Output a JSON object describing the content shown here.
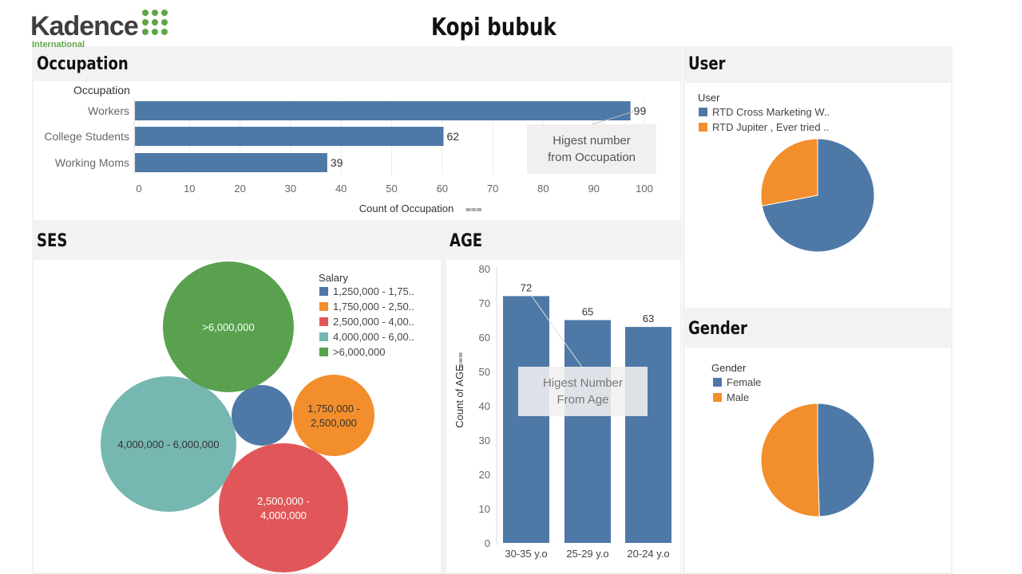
{
  "header": {
    "title": "Kopi bubuk",
    "logo_text": "Kadence",
    "logo_sub": "International"
  },
  "colors": {
    "blue": "#4e79a7",
    "orange": "#f28e2b",
    "red": "#e15759",
    "teal": "#76b7b2",
    "green": "#59a14f"
  },
  "occupation": {
    "title": "Occupation",
    "annotation": [
      "Higest number",
      "from Occupation"
    ],
    "chart_data": {
      "type": "bar",
      "orientation": "horizontal",
      "title": "Occupation",
      "categories_header": "Occupation",
      "categories": [
        "Workers",
        "College Students",
        "Working Moms"
      ],
      "values": [
        99,
        62,
        39
      ],
      "xlabel": "Count of Occupation",
      "xlim": [
        0,
        100
      ],
      "xticks": [
        0,
        10,
        20,
        30,
        40,
        50,
        60,
        70,
        80,
        90,
        100
      ]
    }
  },
  "ses": {
    "title": "SES",
    "legend_title": "Salary",
    "legend": [
      "1,250,000 - 1,75..",
      "1,750,000 - 2,50..",
      "2,500,000 - 4,00..",
      "4,000,000 - 6,00..",
      ">6,000,000"
    ],
    "chart_data": {
      "type": "bubble",
      "categories": [
        "1,250,000 - 1,750,000",
        "1,750,000 - 2,500,000",
        "2,500,000 - 4,000,000",
        "4,000,000 - 6,000,000",
        ">6,000,000"
      ],
      "bubble_labels": [
        "",
        "1,750,000 -|2,500,000",
        "2,500,000 -|4,000,000",
        "4,000,000 - 6,000,000",
        ">6,000,000"
      ],
      "relative_size": [
        0.05,
        0.09,
        0.22,
        0.25,
        0.23
      ],
      "colors": [
        "#4e79a7",
        "#f28e2b",
        "#e15759",
        "#76b7b2",
        "#59a14f"
      ]
    }
  },
  "age": {
    "title": "AGE",
    "annotation": [
      "Higest Number",
      "From Age"
    ],
    "chart_data": {
      "type": "bar",
      "categories": [
        "30-35 y.o",
        "25-29 y.o",
        "20-24 y.o"
      ],
      "values": [
        72,
        65,
        63
      ],
      "ylabel": "Count of AGE",
      "ylim": [
        0,
        80
      ],
      "yticks": [
        0,
        10,
        20,
        30,
        40,
        50,
        60,
        70,
        80
      ]
    }
  },
  "user": {
    "title": "User",
    "legend_title": "User",
    "legend": [
      "RTD Cross Marketing W..",
      "RTD Jupiter , Ever tried .."
    ],
    "chart_data": {
      "type": "pie",
      "labels": [
        "RTD Cross Marketing W..",
        "RTD Jupiter , Ever tried .."
      ],
      "values": [
        72,
        28
      ],
      "colors": [
        "#4e79a7",
        "#f28e2b"
      ]
    }
  },
  "gender": {
    "title": "Gender",
    "legend_title": "Gender",
    "legend": [
      "Female",
      "Male"
    ],
    "chart_data": {
      "type": "pie",
      "labels": [
        "Female",
        "Male"
      ],
      "values": [
        49.5,
        50.5
      ],
      "colors": [
        "#4e79a7",
        "#f28e2b"
      ]
    }
  }
}
